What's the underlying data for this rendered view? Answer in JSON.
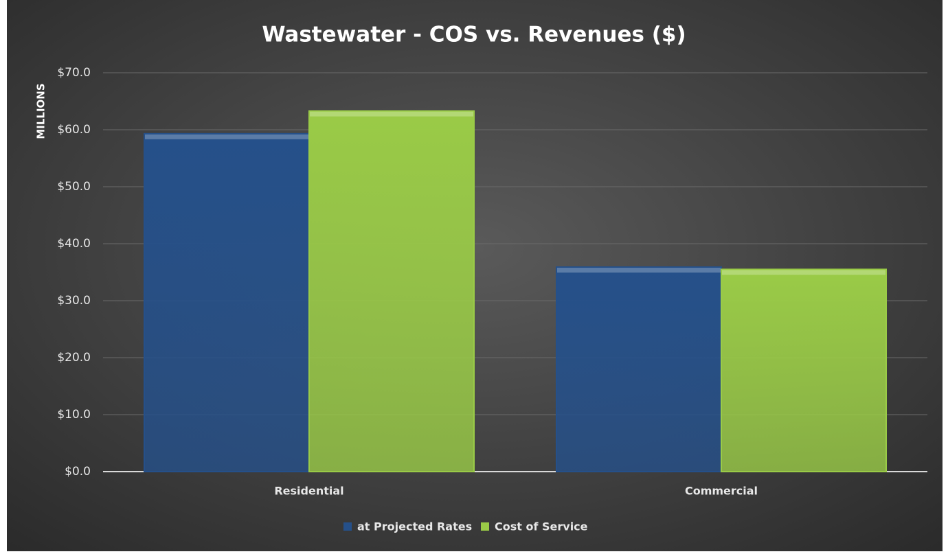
{
  "chart_data": {
    "type": "bar",
    "title": "Wastewater  - COS vs. Revenues ($)",
    "y_label": "MILLIONS",
    "categories": [
      "Residential",
      "Commercial"
    ],
    "series": [
      {
        "name": "at Projected Rates",
        "color": "#25508a",
        "values": [
          59.3,
          35.9
        ]
      },
      {
        "name": "Cost of Service",
        "color": "#9acb47",
        "values": [
          63.3,
          35.5
        ]
      }
    ],
    "ylim": [
      0,
      70
    ],
    "yticks": [
      {
        "value": 0,
        "label": "$0.0"
      },
      {
        "value": 10,
        "label": "$10.0"
      },
      {
        "value": 20,
        "label": "$20.0"
      },
      {
        "value": 30,
        "label": "$30.0"
      },
      {
        "value": 40,
        "label": "$40.0"
      },
      {
        "value": 50,
        "label": "$50.0"
      },
      {
        "value": 60,
        "label": "$60.0"
      },
      {
        "value": 70,
        "label": "$70.0"
      }
    ],
    "grid": true,
    "legend": "bottom"
  }
}
